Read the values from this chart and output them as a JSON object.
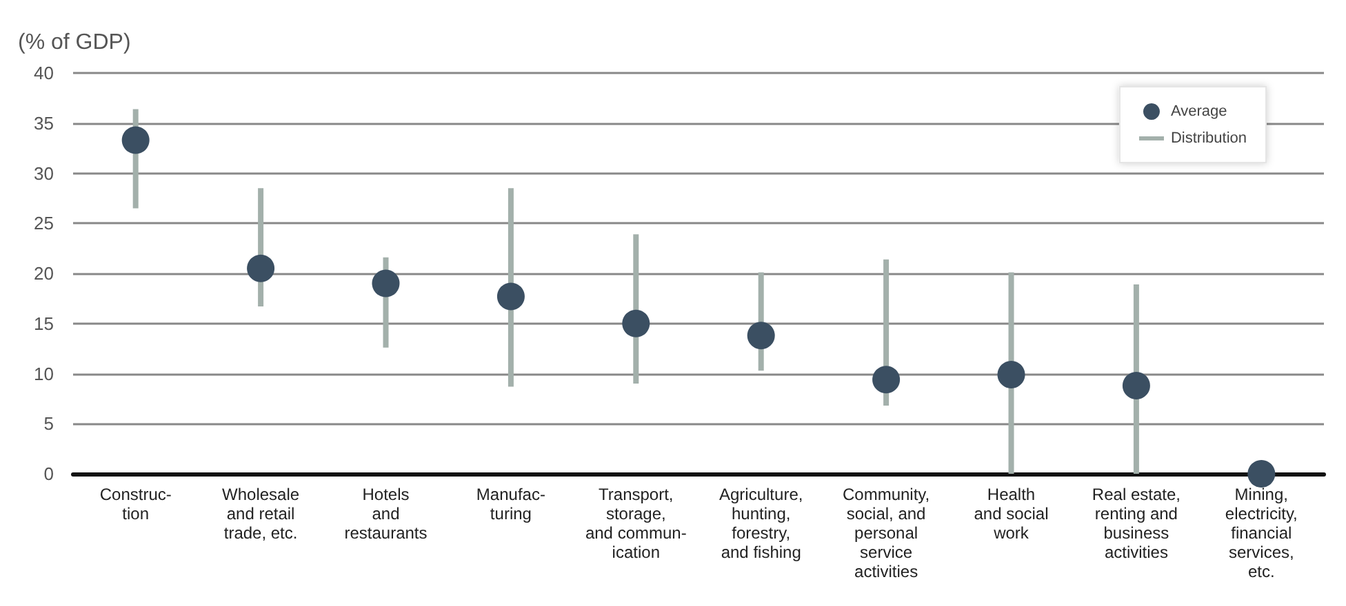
{
  "chart_data": {
    "type": "scatter",
    "ylabel": "(% of GDP)",
    "categories": [
      "Construc-\ntion",
      "Wholesale\nand retail\ntrade, etc.",
      "Hotels\nand\nrestaurants",
      "Manufac-\nturing",
      "Transport,\nstorage,\nand commun-\nication",
      "Agriculture,\nhunting,\nforestry,\nand fishing",
      "Community,\nsocial, and\npersonal\nservice\nactivities",
      "Health\nand social\nwork",
      "Real estate,\nrenting and\nbusiness\nactivities",
      "Mining,\nelectricity,\nfinancial\nservices,\netc."
    ],
    "series": [
      {
        "type": "bar",
        "name": "Distribution",
        "color": "#a3b0ab",
        "base": [
          26.5,
          16.7,
          12.6,
          8.7,
          9.0,
          10.3,
          6.8,
          0,
          0,
          null
        ],
        "values": [
          9.9,
          11.8,
          9.0,
          19.8,
          14.9,
          9.8,
          14.6,
          20.1,
          18.9,
          null
        ]
      },
      {
        "name": "Average",
        "color": "#3b4f62",
        "values": [
          33.3,
          20.5,
          19.0,
          17.7,
          15.0,
          13.8,
          9.4,
          9.9,
          8.8,
          0
        ]
      }
    ],
    "ylim": [
      0,
      40
    ],
    "yticks": [
      0,
      5,
      10,
      15,
      20,
      25,
      30,
      35,
      40
    ],
    "grid": "y",
    "legend": "top right",
    "marker": "circle"
  }
}
